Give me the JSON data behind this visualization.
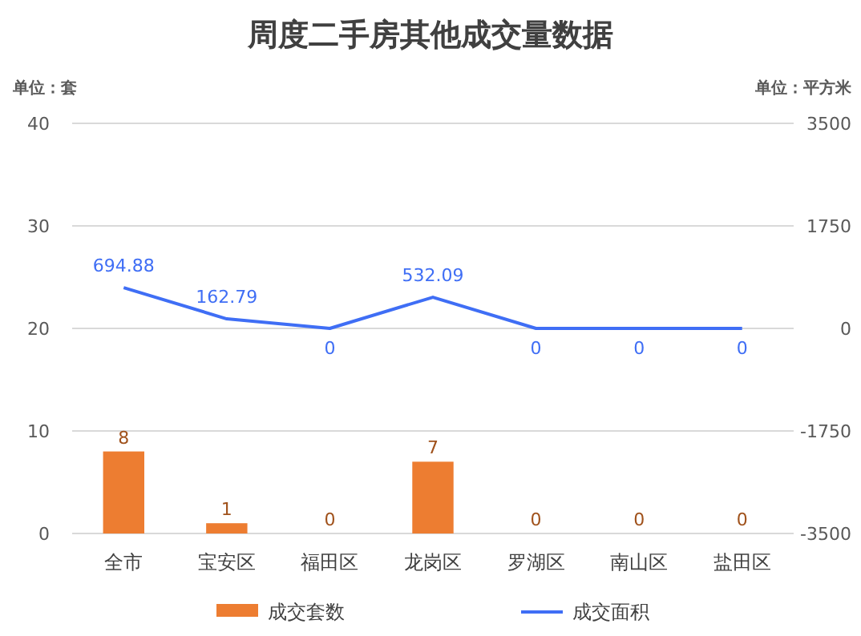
{
  "chart_data": {
    "type": "bar",
    "title": "周度二手房其他成交量数据",
    "ylabel": "单位：套",
    "y2label": "单位：平方米",
    "categories": [
      "全市",
      "宝安区",
      "福田区",
      "龙岗区",
      "罗湖区",
      "南山区",
      "盐田区"
    ],
    "series": [
      {
        "name": "成交套数",
        "color": "#ed7d31",
        "values": [
          8,
          1,
          0,
          7,
          0,
          0,
          0
        ]
      },
      {
        "name": "成交面积",
        "type": "line",
        "axis": "y2",
        "color": "#3f6ef5",
        "values": [
          694.88,
          162.79,
          0,
          532.09,
          0,
          0,
          0
        ]
      }
    ],
    "ylim": [
      0,
      40
    ],
    "yticks": [
      0,
      10,
      20,
      30,
      40
    ],
    "y2lim": [
      -3500,
      3500
    ],
    "y2ticks": [
      -3500,
      -1750,
      0,
      1750,
      3500
    ],
    "grid": "y",
    "legend": "bottom",
    "data_labels": true
  }
}
